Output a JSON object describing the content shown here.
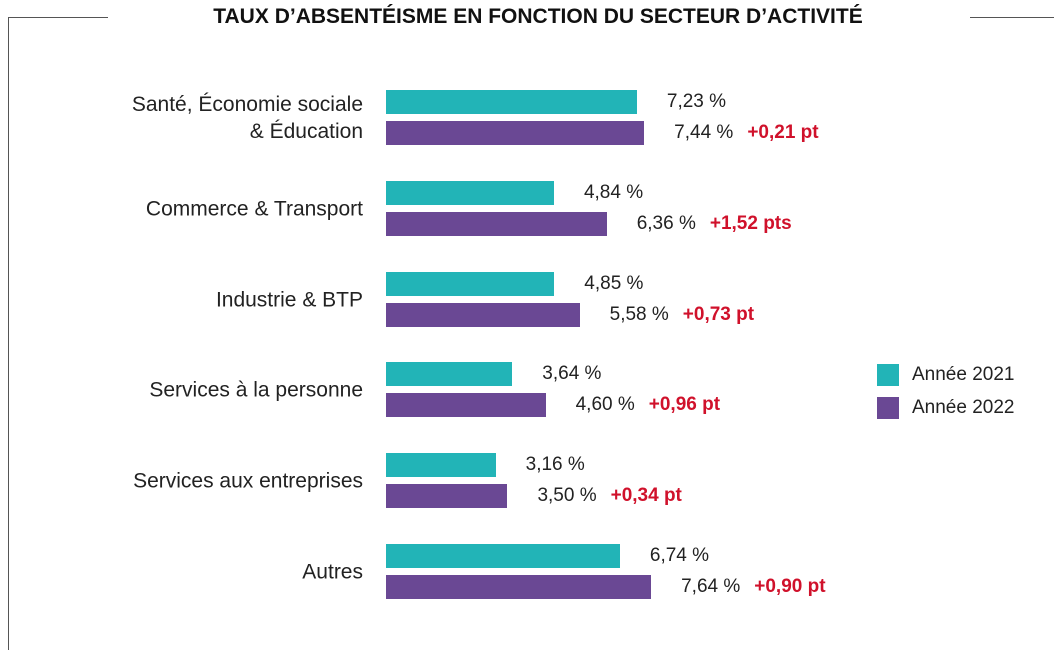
{
  "chart_data": {
    "type": "bar",
    "orientation": "horizontal",
    "title": "TAUX D’ABSENTÉISME EN FONCTION DU SECTEUR D’ACTIVITÉ",
    "categories": [
      "Santé, Économie sociale\n& Éducation",
      "Commerce & Transport",
      "Industrie & BTP",
      "Services à la personne",
      "Services aux entreprises",
      "Autres"
    ],
    "series": [
      {
        "name": "Année 2021",
        "color": "#22b4b7",
        "values": [
          7.23,
          4.84,
          4.85,
          3.64,
          3.16,
          6.74
        ],
        "value_labels": [
          "7,23 %",
          "4,84 %",
          "4,85 %",
          "3,64 %",
          "3,16 %",
          "6,74 %"
        ]
      },
      {
        "name": "Année 2022",
        "color": "#6a4894",
        "values": [
          7.44,
          6.36,
          5.58,
          4.6,
          3.5,
          7.64
        ],
        "value_labels": [
          "7,44 %",
          "6,36 %",
          "5,58 %",
          "4,60 %",
          "3,50 %",
          "7,64 %"
        ]
      }
    ],
    "annotations": [
      "+0,21 pt",
      "+1,52 pts",
      "+0,73 pt",
      "+0,96 pt",
      "+0,34 pt",
      "+0,90 pt"
    ],
    "annotation_color": "#d0112b",
    "legend": "right"
  }
}
